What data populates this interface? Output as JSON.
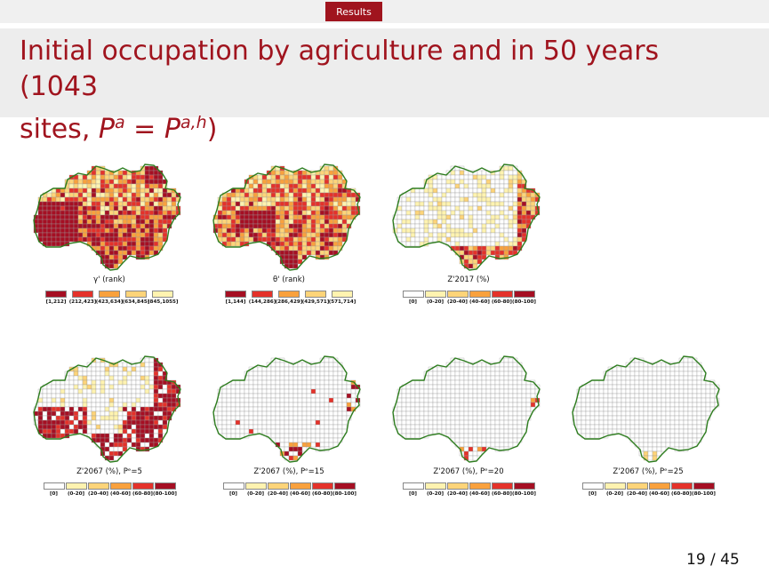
{
  "header": {
    "section_label": "Results"
  },
  "title": {
    "line1": "Initial occupation by agriculture and in 50 years (1043",
    "line2_prefix": "sites, ",
    "math_lhs": "P",
    "math_lhs_sup": "a",
    "math_op": " = ",
    "math_rhs": "P",
    "math_rhs_sup": "a,h",
    "line2_suffix": ")"
  },
  "colors": {
    "empty": "#ffffff",
    "c1": "#fff3b0",
    "c2": "#fdd479",
    "c3": "#f9a13d",
    "c4": "#e4322a",
    "c5": "#a50f23",
    "border": "#2e7d1f",
    "grid": "#9a9a9a"
  },
  "panels": [
    {
      "id": "gamma-rank",
      "caption": "γ' (rank)",
      "legend_labels": [
        "[1,212]",
        "(212,423]",
        "(423,634]",
        "(634,845]",
        "(845,1055]"
      ],
      "legend_colors": [
        "c5",
        "c4",
        "c3",
        "c2",
        "c1"
      ],
      "pattern": "rank-a"
    },
    {
      "id": "theta-rank",
      "caption": "θ' (rank)",
      "legend_labels": [
        "[1,144]",
        "(144,286]",
        "(286,429]",
        "(429,571]",
        "(571,714]"
      ],
      "legend_colors": [
        "c5",
        "c4",
        "c3",
        "c2",
        "c1"
      ],
      "pattern": "rank-b"
    },
    {
      "id": "z2017",
      "caption": "Z'2017 (%)",
      "legend_labels": [
        "[0]",
        "(0-20]",
        "(20-40]",
        "(40-60]",
        "(60-80]",
        "(80-100]"
      ],
      "legend_colors": [
        "empty",
        "c1",
        "c2",
        "c3",
        "c4",
        "c5"
      ],
      "pattern": "z2017"
    },
    {
      "id": "z2067-pe5",
      "caption": "Z'2067 (%), Pᵉ=5",
      "legend_labels": [
        "[0]",
        "(0-20]",
        "(20-40]",
        "(40-60]",
        "(60-80]",
        "(80-100]"
      ],
      "legend_colors": [
        "empty",
        "c1",
        "c2",
        "c3",
        "c4",
        "c5"
      ],
      "pattern": "pe5"
    },
    {
      "id": "z2067-pe15",
      "caption": "Z'2067 (%), Pᵉ=15",
      "legend_labels": [
        "[0]",
        "(0-20]",
        "(20-40]",
        "(40-60]",
        "(60-80]",
        "(80-100]"
      ],
      "legend_colors": [
        "empty",
        "c1",
        "c2",
        "c3",
        "c4",
        "c5"
      ],
      "pattern": "pe15"
    },
    {
      "id": "z2067-pe20",
      "caption": "Z'2067 (%), Pᵉ=20",
      "legend_labels": [
        "[0]",
        "(0-20]",
        "(20-40]",
        "(40-60]",
        "(60-80]",
        "(80-100]"
      ],
      "legend_colors": [
        "empty",
        "c1",
        "c2",
        "c3",
        "c4",
        "c5"
      ],
      "pattern": "pe20"
    },
    {
      "id": "z2067-pe25",
      "caption": "Z'2067 (%), Pᵉ=25",
      "legend_labels": [
        "[0]",
        "(0-20]",
        "(20-40]",
        "(40-60]",
        "(60-80]",
        "(80-100]"
      ],
      "legend_colors": [
        "empty",
        "c1",
        "c2",
        "c3",
        "c4",
        "c5"
      ],
      "pattern": "pe25"
    }
  ],
  "footer": {
    "page": "19 / 45"
  }
}
